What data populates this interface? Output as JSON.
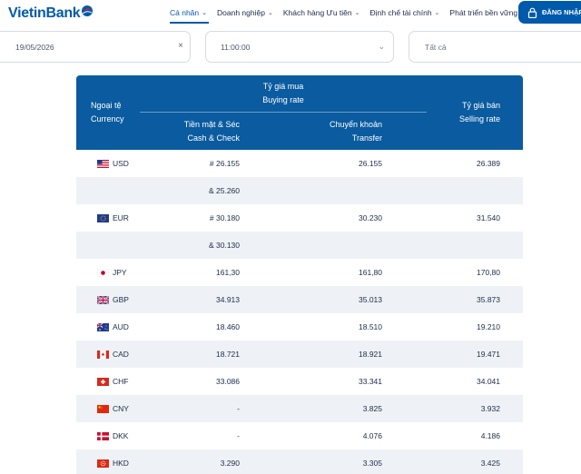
{
  "brand": {
    "name": "VietinBank"
  },
  "nav": {
    "items": [
      {
        "label": "Cá nhân",
        "active": true
      },
      {
        "label": "Doanh nghiệp",
        "active": false
      },
      {
        "label": "Khách hàng Ưu tiên",
        "active": false
      },
      {
        "label": "Định chế tài chính",
        "active": false
      },
      {
        "label": "Phát triển bền vững",
        "active": false
      }
    ],
    "login_label": "ĐĂNG NHẬP"
  },
  "filters": {
    "date_value": "19/05/2026",
    "time_value": "11:00:00",
    "currency_filter_placeholder": "Tất cả"
  },
  "table": {
    "headers": {
      "currency": "Ngoại tệ",
      "currency_en": "Currency",
      "buying": "Tỷ giá mua",
      "buying_en": "Buying rate",
      "cash": "Tiền mặt & Séc",
      "cash_en": "Cash & Check",
      "transfer": "Chuyển khoản",
      "transfer_en": "Transfer",
      "selling": "Tỷ giá bán",
      "selling_en": "Selling rate"
    },
    "rows": [
      {
        "code": "USD",
        "flag": "us-flag-icon",
        "cash": "# 26.155",
        "transfer": "26.155",
        "selling": "26.389"
      },
      {
        "code": "",
        "flag": "",
        "cash": "& 25.260",
        "transfer": "",
        "selling": ""
      },
      {
        "code": "EUR",
        "flag": "eu-flag-icon",
        "cash": "# 30.180",
        "transfer": "30.230",
        "selling": "31.540"
      },
      {
        "code": "",
        "flag": "",
        "cash": "& 30.130",
        "transfer": "",
        "selling": ""
      },
      {
        "code": "JPY",
        "flag": "jp-flag-icon",
        "cash": "161,30",
        "transfer": "161,80",
        "selling": "170,80"
      },
      {
        "code": "GBP",
        "flag": "gb-flag-icon",
        "cash": "34.913",
        "transfer": "35.013",
        "selling": "35.873"
      },
      {
        "code": "AUD",
        "flag": "au-flag-icon",
        "cash": "18.460",
        "transfer": "18.510",
        "selling": "19.210"
      },
      {
        "code": "CAD",
        "flag": "ca-flag-icon",
        "cash": "18.721",
        "transfer": "18.921",
        "selling": "19.471"
      },
      {
        "code": "CHF",
        "flag": "ch-flag-icon",
        "cash": "33.086",
        "transfer": "33.341",
        "selling": "34.041"
      },
      {
        "code": "CNY",
        "flag": "cn-flag-icon",
        "cash": "-",
        "transfer": "3.825",
        "selling": "3.932"
      },
      {
        "code": "DKK",
        "flag": "dk-flag-icon",
        "cash": "-",
        "transfer": "4.076",
        "selling": "4.186"
      },
      {
        "code": "HKD",
        "flag": "hk-flag-icon",
        "cash": "3.290",
        "transfer": "3.305",
        "selling": "3.425"
      }
    ]
  },
  "colors": {
    "brand_blue": "#005aab",
    "header_blue": "#0a5b9f",
    "row_alt": "#eef2f6"
  }
}
